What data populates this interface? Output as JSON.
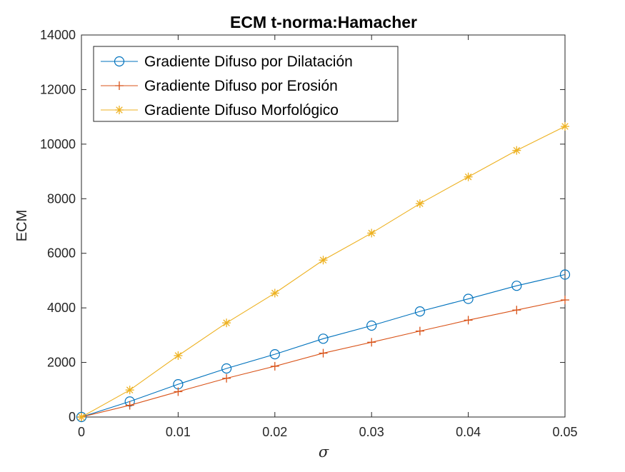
{
  "chart_data": {
    "type": "line",
    "title": "ECM t-norma:Hamacher",
    "xlabel": "σ",
    "ylabel": "ECM",
    "xlim": [
      0,
      0.05
    ],
    "ylim": [
      0,
      14000
    ],
    "xticks": [
      0,
      0.01,
      0.02,
      0.03,
      0.04,
      0.05
    ],
    "xtick_labels": [
      "0",
      "0.01",
      "0.02",
      "0.03",
      "0.04",
      "0.05"
    ],
    "yticks": [
      0,
      2000,
      4000,
      6000,
      8000,
      10000,
      12000,
      14000
    ],
    "ytick_labels": [
      "0",
      "2000",
      "4000",
      "6000",
      "8000",
      "10000",
      "12000",
      "14000"
    ],
    "grid": false,
    "legend_position": "top-left",
    "x": [
      0,
      0.005,
      0.01,
      0.015,
      0.02,
      0.025,
      0.03,
      0.035,
      0.04,
      0.045,
      0.05
    ],
    "series": [
      {
        "name": "Gradiente Difuso por Dilatación",
        "marker": "circle",
        "color": "#0072BD",
        "values": [
          0,
          570,
          1200,
          1780,
          2300,
          2870,
          3350,
          3870,
          4330,
          4810,
          5220
        ]
      },
      {
        "name": "Gradiente Difuso por Erosión",
        "marker": "plus",
        "color": "#D95319",
        "values": [
          0,
          430,
          930,
          1420,
          1860,
          2340,
          2740,
          3150,
          3550,
          3920,
          4290
        ]
      },
      {
        "name": "Gradiente Difuso Morfológico",
        "marker": "asterisk",
        "color": "#EDB120",
        "values": [
          0,
          990,
          2250,
          3450,
          4540,
          5750,
          6740,
          7820,
          8800,
          9770,
          10650
        ]
      }
    ]
  }
}
